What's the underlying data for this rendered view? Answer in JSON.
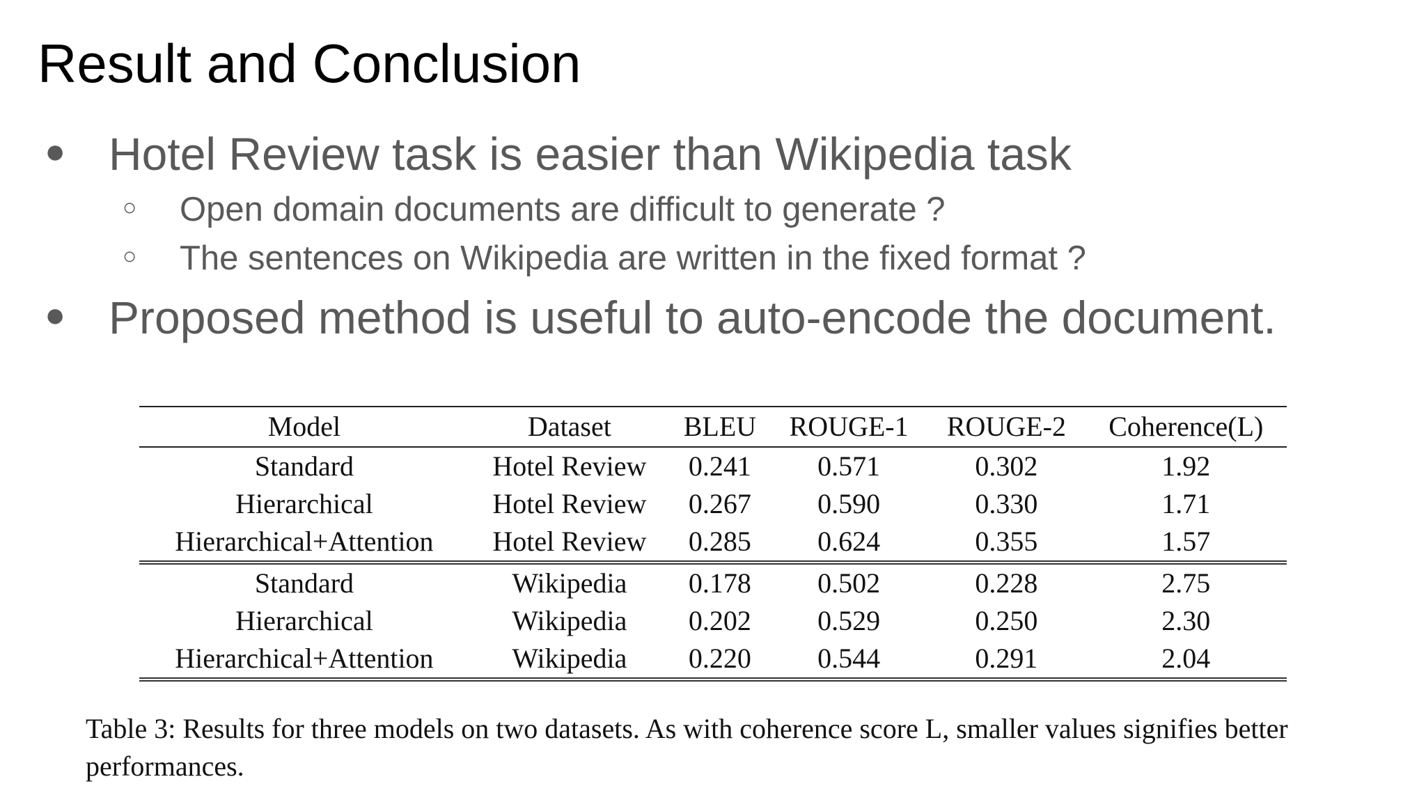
{
  "slide": {
    "title": "Result and Conclusion",
    "bullets": [
      {
        "mark": "●",
        "text": "Hotel Review task is easier than Wikipedia task"
      },
      {
        "mark": "○",
        "text": "Open domain documents are difficult to generate ?"
      },
      {
        "mark": "○",
        "text": "The sentences on Wikipedia are written in the fixed format ?"
      },
      {
        "mark": "●",
        "text": "Proposed method is useful to auto-encode the document."
      }
    ]
  },
  "table": {
    "headers": [
      "Model",
      "Dataset",
      "BLEU",
      "ROUGE-1",
      "ROUGE-2",
      "Coherence(L)"
    ],
    "rows": [
      [
        "Standard",
        "Hotel Review",
        "0.241",
        "0.571",
        "0.302",
        "1.92"
      ],
      [
        "Hierarchical",
        "Hotel Review",
        "0.267",
        "0.590",
        "0.330",
        "1.71"
      ],
      [
        "Hierarchical+Attention",
        "Hotel Review",
        "0.285",
        "0.624",
        "0.355",
        "1.57"
      ],
      [
        "Standard",
        "Wikipedia",
        "0.178",
        "0.502",
        "0.228",
        "2.75"
      ],
      [
        "Hierarchical",
        "Wikipedia",
        "0.202",
        "0.529",
        "0.250",
        "2.30"
      ],
      [
        "Hierarchical+Attention",
        "Wikipedia",
        "0.220",
        "0.544",
        "0.291",
        "2.04"
      ]
    ],
    "caption": "Table 3: Results for three models on two datasets. As with coherence score L, smaller values signifies better performances."
  }
}
